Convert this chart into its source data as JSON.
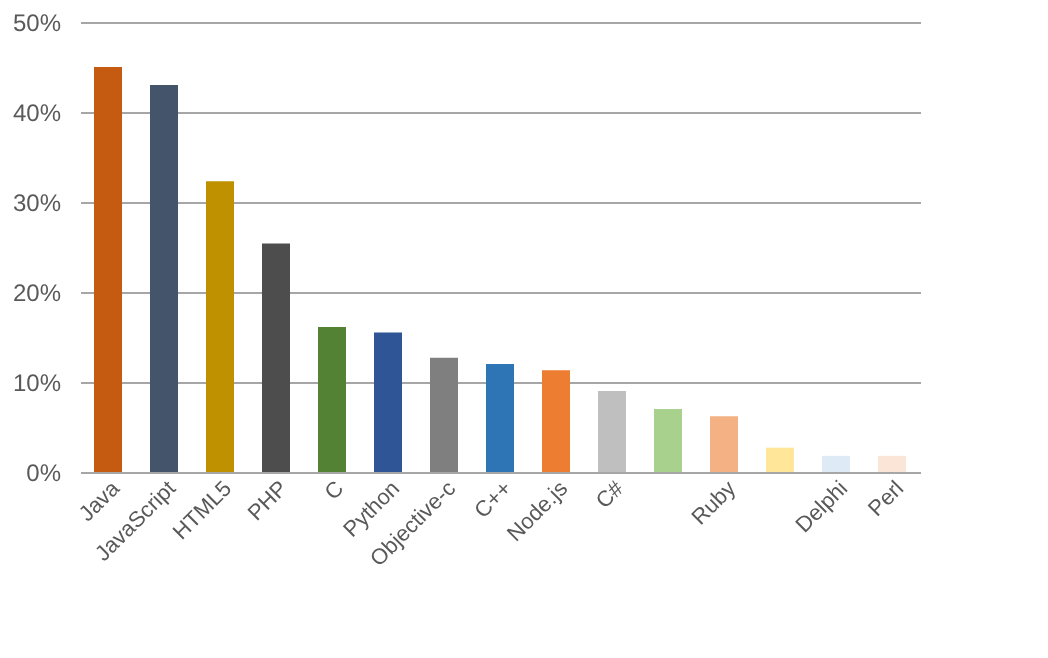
{
  "chart_data": {
    "type": "bar",
    "categories": [
      "Java",
      "JavaScript",
      "HTML5",
      "PHP",
      "C",
      "Python",
      "Objective-c",
      "C++",
      "Node.js",
      "C#",
      null,
      "Ruby",
      null,
      "Delphi",
      "Perl"
    ],
    "values": [
      45,
      43,
      32.3,
      25.4,
      16.1,
      15.5,
      12.7,
      12.0,
      11.3,
      9.0,
      7.0,
      6.2,
      2.7,
      1.8,
      1.8
    ],
    "colors": [
      "#c55a11",
      "#44546a",
      "#bf9000",
      "#4d4d4d",
      "#548235",
      "#2f5597",
      "#7f7f7f",
      "#2e75b6",
      "#ed7d31",
      "#bfbfbf",
      "#a9d18e",
      "#f4b183",
      "#ffe699",
      "#deebf7",
      "#fbe5d6"
    ],
    "ylim": [
      0,
      50
    ],
    "yticks": [
      {
        "value": 0,
        "label": "0%"
      },
      {
        "value": 10,
        "label": "10%"
      },
      {
        "value": 20,
        "label": "20%"
      },
      {
        "value": 30,
        "label": "30%"
      },
      {
        "value": 40,
        "label": "40%"
      },
      {
        "value": 50,
        "label": "50%"
      }
    ],
    "grid": "y"
  }
}
